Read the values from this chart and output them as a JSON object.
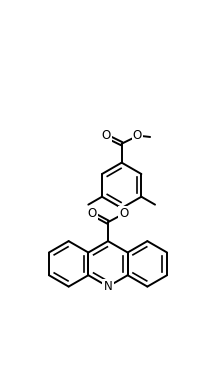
{
  "bg_color": "#ffffff",
  "line_color": "#000000",
  "line_width": 1.4,
  "figsize": [
    2.16,
    3.72
  ],
  "dpi": 100,
  "xlim": [
    0,
    10
  ],
  "ylim": [
    0,
    17
  ]
}
